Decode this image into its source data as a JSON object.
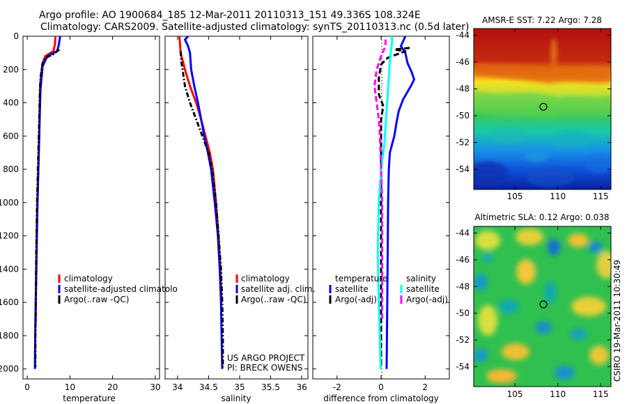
{
  "header": {
    "line1": "Argo profile: AO 1900684_185 12-Mar-2011 20110313_151 49.336S 108.324E",
    "line2": "Climatology: CARS2009. Satellite-adjusted climatology: synTS_20110313.nc (0.5d later)"
  },
  "credit": "CSIRO 19-Mar-2011 10:30:49",
  "project": {
    "line1": "US ARGO PROJECT",
    "line2": "PI: BRECK OWENS"
  },
  "chart_data": [
    {
      "type": "line",
      "id": "temp",
      "xlabel": "temperature",
      "ylabel": "",
      "xlim": [
        -1,
        31
      ],
      "ylim": [
        2060,
        0
      ],
      "xticks": [
        "0",
        "10",
        "20",
        "30"
      ],
      "yticks": [
        "0",
        "200",
        "400",
        "600",
        "800",
        "1000",
        "1200",
        "1400",
        "1600",
        "1800",
        "2000"
      ],
      "legend": [
        "climatology",
        "satellite-adjusted climatolo",
        "Argo(..raw -QC)"
      ],
      "series": [
        {
          "name": "climatology",
          "color": "#ff0000",
          "dash": "solid",
          "points": [
            [
              6.6,
              0
            ],
            [
              6.5,
              50
            ],
            [
              6.1,
              90
            ],
            [
              4.2,
              120
            ],
            [
              3.5,
              170
            ],
            [
              3.0,
              300
            ],
            [
              2.9,
              450
            ],
            [
              2.8,
              600
            ],
            [
              2.6,
              800
            ],
            [
              2.4,
              1000
            ],
            [
              2.2,
              1300
            ],
            [
              2.0,
              1600
            ],
            [
              2.0,
              1720
            ]
          ]
        },
        {
          "name": "satellite-adjusted climatolo",
          "color": "#0000ff",
          "dash": "solid",
          "points": [
            [
              7.7,
              0
            ],
            [
              7.4,
              50
            ],
            [
              7.0,
              90
            ],
            [
              4.7,
              120
            ],
            [
              3.6,
              180
            ],
            [
              3.1,
              320
            ],
            [
              2.9,
              500
            ],
            [
              2.7,
              700
            ],
            [
              2.5,
              900
            ],
            [
              2.3,
              1100
            ],
            [
              2.1,
              1400
            ],
            [
              1.9,
              1700
            ],
            [
              1.8,
              2000
            ]
          ]
        },
        {
          "name": "Argo(..raw -QC)",
          "color": "#000000",
          "dash": "dashdot",
          "points": [
            [
              7.5,
              80
            ],
            [
              6.0,
              110
            ],
            [
              4.3,
              130
            ],
            [
              3.6,
              160
            ],
            [
              3.1,
              250
            ],
            [
              2.9,
              400
            ],
            [
              2.7,
              600
            ],
            [
              2.5,
              800
            ],
            [
              2.3,
              1000
            ],
            [
              2.1,
              1300
            ],
            [
              2.0,
              1600
            ],
            [
              1.9,
              1800
            ],
            [
              1.9,
              1990
            ]
          ]
        }
      ]
    },
    {
      "type": "line",
      "id": "sal",
      "xlabel": "salinity",
      "ylabel": "",
      "xlim": [
        33.8,
        36.1
      ],
      "ylim": [
        2060,
        0
      ],
      "xticks": [
        "34",
        "34.5",
        "35",
        "35.5",
        "36"
      ],
      "legend": [
        "climatology",
        "satellite adj. clim.",
        "Argo(..raw -QC)"
      ],
      "series": [
        {
          "name": "climatology",
          "color": "#ff0000",
          "dash": "solid",
          "points": [
            [
              34.03,
              0
            ],
            [
              34.05,
              100
            ],
            [
              34.12,
              200
            ],
            [
              34.2,
              300
            ],
            [
              34.3,
              400
            ],
            [
              34.38,
              500
            ],
            [
              34.45,
              600
            ],
            [
              34.52,
              700
            ],
            [
              34.57,
              800
            ],
            [
              34.62,
              1000
            ],
            [
              34.66,
              1200
            ],
            [
              34.69,
              1400
            ],
            [
              34.71,
              1600
            ]
          ]
        },
        {
          "name": "satellite adj. clim.",
          "color": "#0000ff",
          "dash": "solid",
          "points": [
            [
              34.17,
              0
            ],
            [
              34.12,
              20
            ],
            [
              34.17,
              60
            ],
            [
              34.2,
              100
            ],
            [
              34.22,
              200
            ],
            [
              34.27,
              300
            ],
            [
              34.33,
              400
            ],
            [
              34.38,
              500
            ],
            [
              34.43,
              600
            ],
            [
              34.49,
              700
            ],
            [
              34.54,
              800
            ],
            [
              34.6,
              1000
            ],
            [
              34.65,
              1200
            ],
            [
              34.68,
              1400
            ],
            [
              34.7,
              1600
            ],
            [
              34.71,
              1800
            ],
            [
              34.72,
              2000
            ]
          ]
        },
        {
          "name": "Argo(..raw -QC)",
          "color": "#000000",
          "dash": "dashdot",
          "points": [
            [
              34.05,
              90
            ],
            [
              34.06,
              150
            ],
            [
              34.08,
              200
            ],
            [
              34.12,
              300
            ],
            [
              34.2,
              400
            ],
            [
              34.3,
              500
            ],
            [
              34.4,
              600
            ],
            [
              34.5,
              700
            ],
            [
              34.56,
              800
            ],
            [
              34.62,
              1000
            ],
            [
              34.66,
              1200
            ],
            [
              34.7,
              1400
            ],
            [
              34.72,
              1600
            ],
            [
              34.73,
              1800
            ],
            [
              34.73,
              1990
            ]
          ]
        }
      ]
    },
    {
      "type": "line",
      "id": "diff",
      "xlabel": "difference from climatology",
      "ylabel": "",
      "xlim": [
        -3.1,
        3.1
      ],
      "ylim": [
        2060,
        0
      ],
      "xticks": [
        "-2",
        "0",
        "2"
      ],
      "legend_left_title": "temperature",
      "legend_right_title": "salinity",
      "legend": [
        "satellite",
        "Argo(-adj)",
        "satellite",
        "Argo(-adj)"
      ],
      "series": [
        {
          "name": "temperature satellite",
          "color": "#0000ff",
          "dash": "solid",
          "points": [
            [
              1.1,
              0
            ],
            [
              1.0,
              30
            ],
            [
              0.9,
              60
            ],
            [
              1.1,
              100
            ],
            [
              1.2,
              160
            ],
            [
              1.4,
              220
            ],
            [
              1.5,
              260
            ],
            [
              1.35,
              300
            ],
            [
              1.0,
              380
            ],
            [
              0.8,
              450
            ],
            [
              0.7,
              520
            ],
            [
              0.6,
              600
            ],
            [
              0.5,
              650
            ],
            [
              0.4,
              700
            ],
            [
              0.35,
              800
            ],
            [
              0.32,
              1000
            ],
            [
              0.3,
              1300
            ],
            [
              0.28,
              1600
            ],
            [
              0.26,
              1900
            ],
            [
              0.25,
              2000
            ]
          ]
        },
        {
          "name": "temperature Argo(-adj)",
          "color": "#000000",
          "dash": "dashed",
          "points": [
            [
              1.3,
              70
            ],
            [
              0.6,
              80
            ],
            [
              1.1,
              90
            ],
            [
              0.3,
              130
            ],
            [
              0.0,
              170
            ],
            [
              -0.1,
              250
            ],
            [
              -0.1,
              350
            ],
            [
              0.1,
              420
            ],
            [
              0.0,
              500
            ],
            [
              0.0,
              700
            ],
            [
              0.0,
              1000
            ],
            [
              0.0,
              1400
            ],
            [
              0.0,
              1800
            ],
            [
              0.0,
              1990
            ]
          ]
        },
        {
          "name": "salinity satellite",
          "color": "#00ffff",
          "dash": "solid",
          "points": [
            [
              0.5,
              0
            ],
            [
              0.5,
              40
            ],
            [
              0.45,
              80
            ],
            [
              0.4,
              150
            ],
            [
              0.35,
              250
            ],
            [
              0.3,
              350
            ],
            [
              0.25,
              450
            ],
            [
              0.2,
              550
            ],
            [
              0.15,
              650
            ],
            [
              0.05,
              750
            ],
            [
              -0.05,
              900
            ],
            [
              -0.1,
              1000
            ],
            [
              -0.12,
              1100
            ],
            [
              -0.15,
              1300
            ],
            [
              -0.12,
              1500
            ],
            [
              -0.08,
              1700
            ],
            [
              -0.04,
              1900
            ],
            [
              -0.02,
              2000
            ]
          ]
        },
        {
          "name": "salinity Argo(-adj)",
          "color": "#ff00ff",
          "dash": "dashed",
          "points": [
            [
              0.2,
              20
            ],
            [
              0.2,
              60
            ],
            [
              0.0,
              120
            ],
            [
              -0.2,
              200
            ],
            [
              -0.3,
              300
            ],
            [
              -0.2,
              400
            ],
            [
              -0.1,
              500
            ],
            [
              -0.05,
              600
            ],
            [
              0.0,
              800
            ],
            [
              0.05,
              1000
            ],
            [
              0.05,
              1300
            ],
            [
              0.05,
              1600
            ],
            [
              0.05,
              1700
            ]
          ]
        }
      ]
    },
    {
      "type": "heatmap",
      "id": "sst",
      "title": "AMSR-E SST: 7.22 Argo: 7.28",
      "xlim": [
        100.2,
        116.2
      ],
      "ylim": [
        -55.5,
        -43.5
      ],
      "xticks": [
        "105",
        "110",
        "115"
      ],
      "yticks": [
        "-44",
        "-46",
        "-48",
        "-50",
        "-52",
        "-54"
      ],
      "argo_position": [
        108.324,
        -49.336
      ]
    },
    {
      "type": "heatmap",
      "id": "sla",
      "title": "Altimetric SLA: 0.12 Argo: 0.038",
      "xlim": [
        100.2,
        116.2
      ],
      "ylim": [
        -55.5,
        -43.5
      ],
      "xticks": [
        "105",
        "110",
        "115"
      ],
      "yticks": [
        "-44",
        "-46",
        "-48",
        "-50",
        "-52",
        "-54"
      ],
      "argo_position": [
        108.324,
        -49.336
      ]
    }
  ]
}
